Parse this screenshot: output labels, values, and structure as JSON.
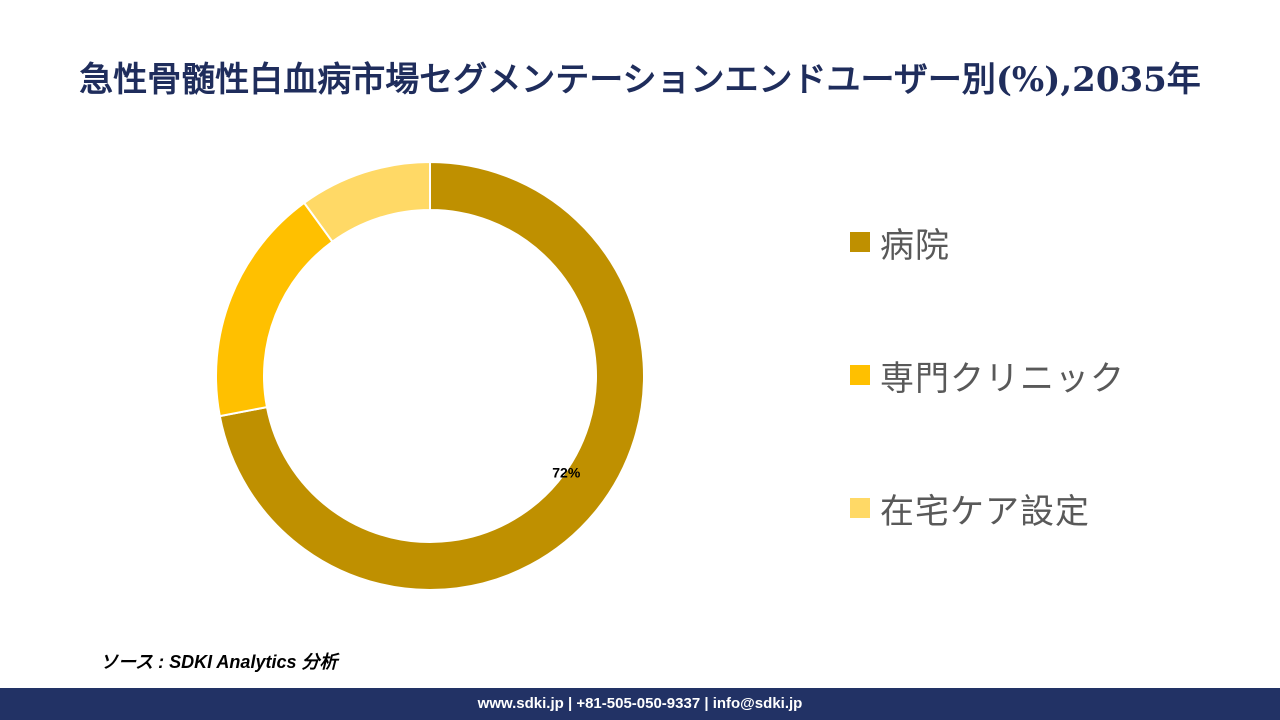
{
  "title": "急性骨髄性白血病市場セグメンテーションエンドユーザー別(%),2035年",
  "chart_data": {
    "type": "pie",
    "style": "donut",
    "categories": [
      "病院",
      "専門クリニック",
      "在宅ケア設定"
    ],
    "values": [
      72,
      18,
      10
    ],
    "colors": [
      "#bf9000",
      "#ffc000",
      "#ffd966"
    ],
    "data_labels": [
      "72%",
      "",
      ""
    ],
    "legend_position": "right"
  },
  "source": "ソース : SDKI Analytics 分析",
  "footer": "www.sdki.jp | +81-505-050-9337 | info@sdki.jp"
}
